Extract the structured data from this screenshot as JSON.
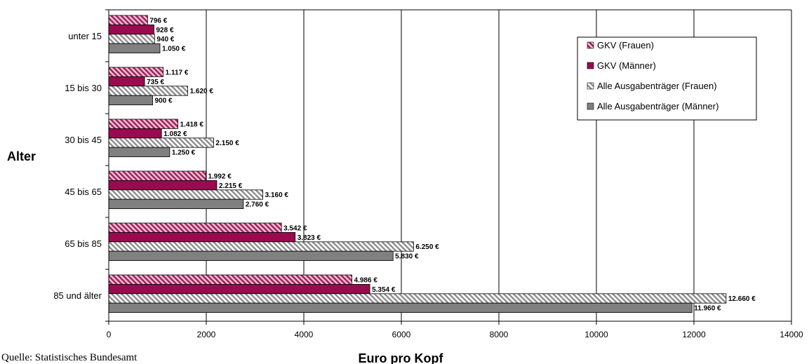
{
  "chart_data": {
    "type": "bar",
    "orientation": "horizontal",
    "categories": [
      "unter 15",
      "15 bis 30",
      "30 bis 45",
      "45 bis 65",
      "65 bis 85",
      "85 und älter"
    ],
    "series": [
      {
        "name": "GKV (Frauen)",
        "values": [
          796,
          1117,
          1418,
          1992,
          3542,
          4986
        ],
        "labels": [
          "796 €",
          "1.117 €",
          "1.418 €",
          "1.992 €",
          "3.542 €",
          "4.986 €"
        ],
        "color": "#a3245e",
        "pattern": "hatch-dense"
      },
      {
        "name": "GKV (Männer)",
        "values": [
          928,
          735,
          1082,
          2215,
          3823,
          5354
        ],
        "labels": [
          "928 €",
          "735 €",
          "1.082 €",
          "2.215 €",
          "3.823 €",
          "5.354 €"
        ],
        "color": "#990a4e",
        "pattern": "solid"
      },
      {
        "name": "Alle Ausgabenträger (Frauen)",
        "values": [
          940,
          1620,
          2150,
          3160,
          6250,
          12660
        ],
        "labels": [
          "940 €",
          "1.620 €",
          "2.150 €",
          "3.160 €",
          "6.250 €",
          "12.660 €"
        ],
        "color": "#8c8c8c",
        "pattern": "hatch-gray"
      },
      {
        "name": "Alle Ausgabenträger (Männer)",
        "values": [
          1050,
          900,
          1250,
          2760,
          5830,
          11960
        ],
        "labels": [
          "1.050 €",
          "900 €",
          "1.250 €",
          "2.760 €",
          "5.830 €",
          "11.960 €"
        ],
        "color": "#808080",
        "pattern": "solid"
      }
    ],
    "xlim": [
      0,
      14000
    ],
    "xticks": [
      0,
      2000,
      4000,
      6000,
      8000,
      10000,
      12000,
      14000
    ],
    "xticklabels": [
      "0",
      "2000",
      "4000",
      "6000",
      "8000",
      "10000",
      "12000",
      "14000"
    ],
    "xlabel": "Euro pro Kopf",
    "ylabel": "Alter",
    "grid": "vertical",
    "legend_position": "top-right"
  },
  "source_note": "Quelle: Statistisches Bundesamt"
}
